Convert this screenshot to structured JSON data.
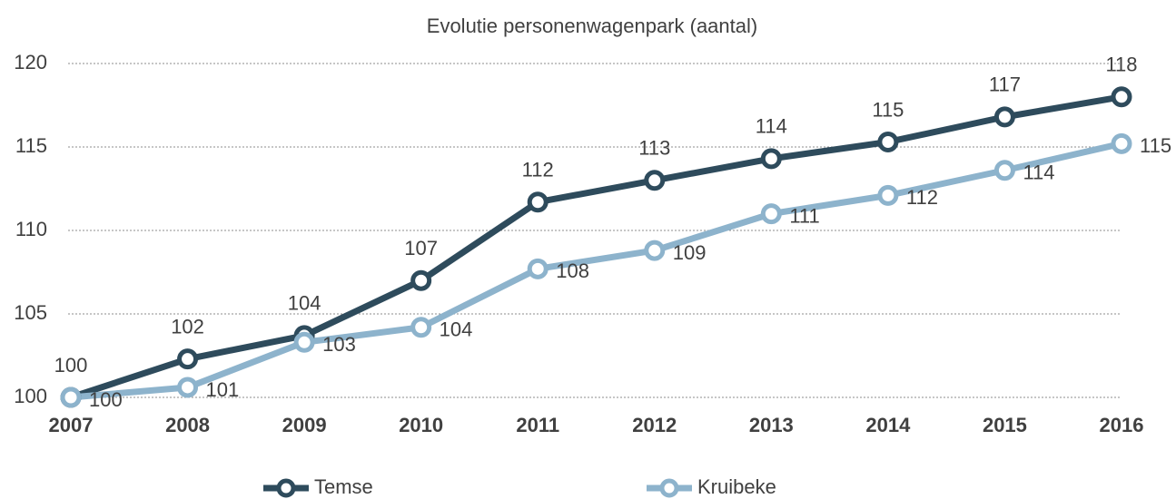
{
  "chart_data": {
    "type": "line",
    "title": "Evolutie personenwagenpark (aantal)",
    "categories": [
      "2007",
      "2008",
      "2009",
      "2010",
      "2011",
      "2012",
      "2013",
      "2014",
      "2015",
      "2016"
    ],
    "series": [
      {
        "name": "Temse",
        "color": "#2e4b5c",
        "values": [
          100,
          102.3,
          103.7,
          107.0,
          111.7,
          113.0,
          114.3,
          115.3,
          116.8,
          118.0
        ],
        "value_labels": [
          "100",
          "102",
          "104",
          "107",
          "112",
          "113",
          "114",
          "115",
          "117",
          "118"
        ]
      },
      {
        "name": "Kruibeke",
        "color": "#8db3cc",
        "values": [
          100,
          100.6,
          103.3,
          104.2,
          107.7,
          108.8,
          111.0,
          112.1,
          113.6,
          115.2
        ],
        "value_labels": [
          "100",
          "101",
          "103",
          "104",
          "108",
          "109",
          "111",
          "112",
          "114",
          "115"
        ]
      }
    ],
    "ylim": [
      100,
      120
    ],
    "yticks": [
      100,
      105,
      110,
      115,
      120
    ],
    "grid": true,
    "legend": "bottom"
  }
}
